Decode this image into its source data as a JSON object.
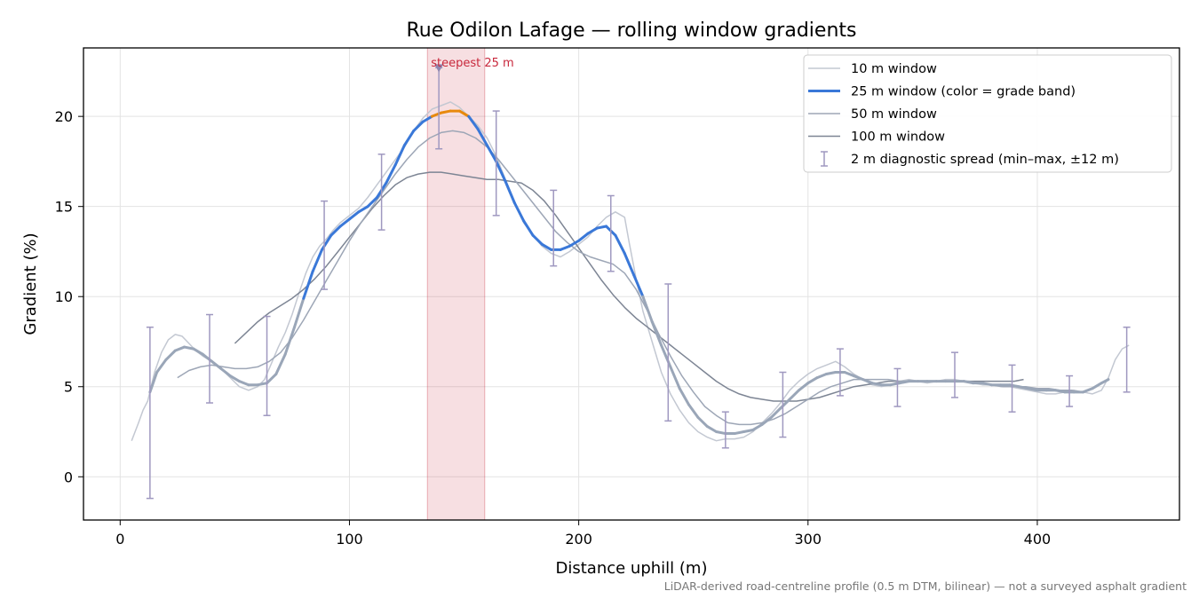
{
  "chart_data": {
    "type": "line",
    "title": "Rue Odilon Lafage — rolling window gradients",
    "xlabel": "Distance uphill (m)",
    "ylabel": "Gradient (%)",
    "xlim": [
      -16,
      462
    ],
    "ylim": [
      -2.4,
      23.8
    ],
    "xticks": [
      0,
      100,
      200,
      300,
      400
    ],
    "yticks": [
      0,
      5,
      10,
      15,
      20
    ],
    "grid": true,
    "legend_position": "top-right",
    "footnote": "LiDAR-derived road-centreline profile (0.5 m DTM, bilinear) — not a surveyed asphalt gradient",
    "highlight": {
      "x_range": [
        134,
        159
      ],
      "label": "steepest 25 m",
      "marker": {
        "x": 139,
        "y": 22.7
      },
      "color": "#c8283c"
    },
    "series": [
      {
        "name": "10 m window",
        "color": "#c3c8d2",
        "x": [
          5,
          8,
          10,
          12,
          15,
          18,
          21,
          24,
          27,
          30,
          33,
          36,
          40,
          44,
          48,
          52,
          56,
          60,
          63,
          66,
          69,
          72,
          75,
          78,
          81,
          84,
          87,
          90,
          93,
          96,
          100,
          104,
          108,
          112,
          116,
          120,
          124,
          128,
          132,
          136,
          140,
          144,
          148,
          152,
          156,
          160,
          164,
          168,
          172,
          176,
          180,
          184,
          188,
          192,
          196,
          200,
          204,
          208,
          212,
          216,
          220,
          222,
          225,
          228,
          232,
          236,
          240,
          244,
          248,
          252,
          256,
          260,
          264,
          268,
          272,
          276,
          280,
          284,
          288,
          292,
          296,
          300,
          304,
          308,
          312,
          316,
          320,
          324,
          328,
          332,
          336,
          340,
          344,
          348,
          352,
          356,
          360,
          364,
          368,
          372,
          376,
          380,
          384,
          388,
          392,
          396,
          400,
          404,
          408,
          412,
          416,
          420,
          424,
          428,
          431,
          434,
          437,
          440
        ],
        "y": [
          2.0,
          3.0,
          3.7,
          4.2,
          5.8,
          6.9,
          7.6,
          7.9,
          7.8,
          7.4,
          7.0,
          6.7,
          6.4,
          6.0,
          5.5,
          5.0,
          4.8,
          5.0,
          5.4,
          6.3,
          7.2,
          8.0,
          9.0,
          10.2,
          11.3,
          12.2,
          12.8,
          13.2,
          13.7,
          14.1,
          14.5,
          14.9,
          15.5,
          16.2,
          16.9,
          17.6,
          18.3,
          19.2,
          19.9,
          20.4,
          20.6,
          20.8,
          20.5,
          20.0,
          19.5,
          18.8,
          17.8,
          16.5,
          15.2,
          14.1,
          13.4,
          12.8,
          12.4,
          12.2,
          12.5,
          12.9,
          13.3,
          13.9,
          14.4,
          14.7,
          14.4,
          13.0,
          11.0,
          9.2,
          7.5,
          5.8,
          4.6,
          3.7,
          3.0,
          2.5,
          2.2,
          2.0,
          2.1,
          2.1,
          2.2,
          2.5,
          3.0,
          3.5,
          4.1,
          4.8,
          5.3,
          5.7,
          6.0,
          6.2,
          6.4,
          6.1,
          5.7,
          5.4,
          5.1,
          5.0,
          5.1,
          5.3,
          5.4,
          5.3,
          5.2,
          5.3,
          5.4,
          5.4,
          5.3,
          5.2,
          5.1,
          5.1,
          5.0,
          5.0,
          4.9,
          4.8,
          4.7,
          4.6,
          4.6,
          4.7,
          4.8,
          4.7,
          4.6,
          4.8,
          5.5,
          6.5,
          7.1,
          7.3
        ]
      },
      {
        "name": "25 m window (color = grade band)",
        "color": "#3a78d8",
        "highlight_color": "#e8890c",
        "x": [
          13,
          16,
          20,
          24,
          28,
          32,
          36,
          40,
          44,
          48,
          52,
          56,
          60,
          64,
          68,
          72,
          76,
          80,
          84,
          88,
          92,
          96,
          100,
          104,
          108,
          112,
          116,
          120,
          124,
          128,
          132,
          136,
          140,
          144,
          148,
          152,
          156,
          160,
          164,
          168,
          172,
          176,
          180,
          184,
          188,
          192,
          196,
          200,
          204,
          208,
          212,
          216,
          220,
          224,
          228,
          232,
          236,
          240,
          244,
          248,
          252,
          256,
          260,
          264,
          268,
          272,
          276,
          280,
          284,
          288,
          292,
          296,
          300,
          304,
          308,
          312,
          316,
          320,
          324,
          328,
          332,
          336,
          340,
          344,
          348,
          352,
          356,
          360,
          364,
          368,
          372,
          376,
          380,
          384,
          388,
          392,
          396,
          400,
          404,
          408,
          412,
          416,
          420,
          424,
          428,
          431
        ],
        "y": [
          4.7,
          5.8,
          6.5,
          7.0,
          7.2,
          7.1,
          6.8,
          6.4,
          6.0,
          5.6,
          5.3,
          5.1,
          5.1,
          5.2,
          5.7,
          6.8,
          8.3,
          9.9,
          11.4,
          12.6,
          13.4,
          13.9,
          14.3,
          14.7,
          15.0,
          15.5,
          16.3,
          17.3,
          18.4,
          19.2,
          19.7,
          20.0,
          20.2,
          20.3,
          20.3,
          20.0,
          19.3,
          18.4,
          17.5,
          16.4,
          15.2,
          14.2,
          13.4,
          12.9,
          12.6,
          12.6,
          12.8,
          13.1,
          13.5,
          13.8,
          13.9,
          13.4,
          12.4,
          11.2,
          10.0,
          8.6,
          7.3,
          6.1,
          4.9,
          4.0,
          3.3,
          2.8,
          2.5,
          2.4,
          2.4,
          2.5,
          2.6,
          2.9,
          3.3,
          3.8,
          4.3,
          4.8,
          5.2,
          5.5,
          5.7,
          5.8,
          5.8,
          5.6,
          5.4,
          5.2,
          5.1,
          5.1,
          5.2,
          5.3,
          5.3,
          5.3,
          5.3,
          5.3,
          5.3,
          5.3,
          5.2,
          5.2,
          5.1,
          5.1,
          5.1,
          5.0,
          4.9,
          4.8,
          4.8,
          4.8,
          4.7,
          4.7,
          4.7,
          4.9,
          5.2,
          5.4
        ]
      },
      {
        "name": "50 m window",
        "color": "#9da6b6",
        "x": [
          25,
          30,
          35,
          40,
          45,
          50,
          55,
          60,
          65,
          70,
          75,
          80,
          85,
          90,
          95,
          100,
          105,
          110,
          115,
          120,
          125,
          130,
          135,
          140,
          145,
          150,
          155,
          160,
          165,
          170,
          175,
          180,
          185,
          190,
          195,
          200,
          205,
          210,
          215,
          220,
          225,
          230,
          235,
          240,
          245,
          250,
          255,
          260,
          265,
          270,
          275,
          280,
          285,
          290,
          295,
          300,
          305,
          310,
          315,
          320,
          325,
          330,
          335,
          340,
          345,
          350,
          355,
          360,
          365,
          370,
          375,
          380,
          385,
          390,
          395,
          400,
          405,
          410,
          415,
          420
        ],
        "y": [
          5.5,
          5.9,
          6.1,
          6.2,
          6.1,
          6.0,
          6.0,
          6.1,
          6.4,
          6.9,
          7.7,
          8.7,
          9.8,
          10.9,
          12.0,
          13.1,
          14.1,
          15.0,
          15.9,
          16.8,
          17.6,
          18.3,
          18.8,
          19.1,
          19.2,
          19.1,
          18.8,
          18.3,
          17.6,
          16.8,
          16.0,
          15.2,
          14.4,
          13.6,
          13.0,
          12.5,
          12.2,
          12.0,
          11.8,
          11.3,
          10.4,
          9.2,
          7.9,
          6.7,
          5.6,
          4.7,
          3.9,
          3.4,
          3.0,
          2.9,
          2.9,
          3.0,
          3.2,
          3.5,
          3.9,
          4.3,
          4.7,
          5.0,
          5.2,
          5.4,
          5.4,
          5.4,
          5.4,
          5.3,
          5.3,
          5.3,
          5.3,
          5.3,
          5.3,
          5.3,
          5.2,
          5.1,
          5.0,
          5.0,
          5.0,
          4.9,
          4.9,
          4.8,
          4.8,
          4.7
        ]
      },
      {
        "name": "100 m window",
        "color": "#7d8594",
        "x": [
          50,
          55,
          60,
          65,
          70,
          75,
          80,
          85,
          90,
          95,
          100,
          105,
          110,
          115,
          120,
          125,
          130,
          135,
          140,
          145,
          150,
          155,
          160,
          165,
          170,
          175,
          180,
          185,
          190,
          195,
          200,
          205,
          210,
          215,
          220,
          225,
          230,
          235,
          240,
          245,
          250,
          255,
          260,
          265,
          270,
          275,
          280,
          285,
          290,
          295,
          300,
          305,
          310,
          315,
          320,
          325,
          330,
          335,
          340,
          345,
          350,
          355,
          360,
          365,
          370,
          375,
          380,
          385,
          390,
          394
        ],
        "y": [
          7.4,
          8.0,
          8.6,
          9.1,
          9.5,
          9.9,
          10.4,
          11.0,
          11.7,
          12.5,
          13.3,
          14.1,
          14.9,
          15.6,
          16.2,
          16.6,
          16.8,
          16.9,
          16.9,
          16.8,
          16.7,
          16.6,
          16.5,
          16.5,
          16.4,
          16.3,
          15.9,
          15.3,
          14.5,
          13.6,
          12.7,
          11.8,
          10.9,
          10.1,
          9.4,
          8.8,
          8.3,
          7.8,
          7.3,
          6.8,
          6.3,
          5.8,
          5.3,
          4.9,
          4.6,
          4.4,
          4.3,
          4.2,
          4.2,
          4.2,
          4.3,
          4.4,
          4.6,
          4.8,
          5.0,
          5.1,
          5.2,
          5.3,
          5.3,
          5.3,
          5.3,
          5.3,
          5.3,
          5.3,
          5.3,
          5.3,
          5.3,
          5.3,
          5.3,
          5.4
        ]
      }
    ],
    "error_bars": {
      "name": "2 m diagnostic spread (min–max, ±12 m)",
      "color": "#9f98c0",
      "points": [
        {
          "x": 13,
          "lo": -1.2,
          "hi": 8.3
        },
        {
          "x": 39,
          "lo": 4.1,
          "hi": 9.0
        },
        {
          "x": 64,
          "lo": 3.4,
          "hi": 8.9
        },
        {
          "x": 89,
          "lo": 10.4,
          "hi": 15.3
        },
        {
          "x": 114,
          "lo": 13.7,
          "hi": 17.9
        },
        {
          "x": 139,
          "lo": 18.2,
          "hi": 22.7
        },
        {
          "x": 164,
          "lo": 14.5,
          "hi": 20.3
        },
        {
          "x": 189,
          "lo": 11.7,
          "hi": 15.9
        },
        {
          "x": 214,
          "lo": 11.4,
          "hi": 15.6
        },
        {
          "x": 239,
          "lo": 3.1,
          "hi": 10.7
        },
        {
          "x": 264,
          "lo": 1.6,
          "hi": 3.6
        },
        {
          "x": 289,
          "lo": 2.2,
          "hi": 5.8
        },
        {
          "x": 314,
          "lo": 4.5,
          "hi": 7.1
        },
        {
          "x": 339,
          "lo": 3.9,
          "hi": 6.0
        },
        {
          "x": 364,
          "lo": 4.4,
          "hi": 6.9
        },
        {
          "x": 389,
          "lo": 3.6,
          "hi": 6.2
        },
        {
          "x": 414,
          "lo": 3.9,
          "hi": 5.6
        },
        {
          "x": 439,
          "lo": 4.7,
          "hi": 8.3
        }
      ]
    }
  }
}
